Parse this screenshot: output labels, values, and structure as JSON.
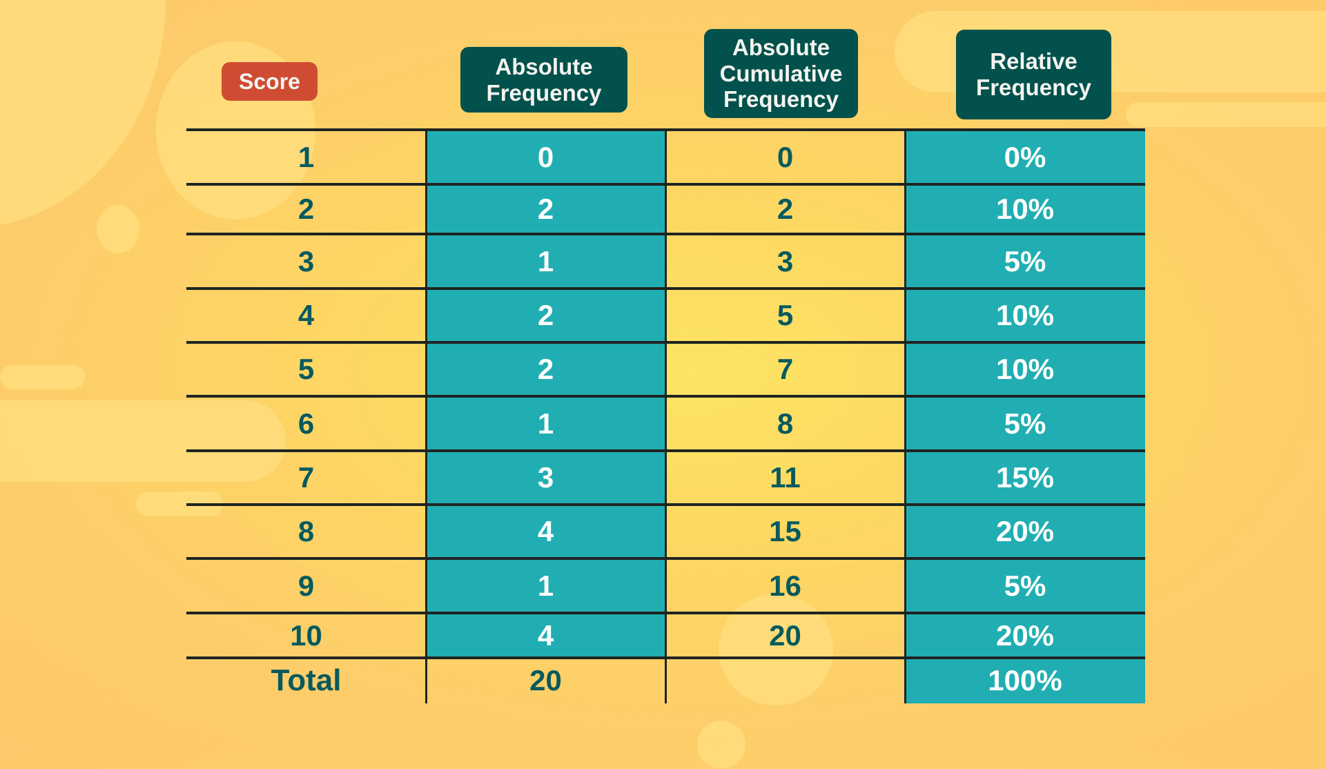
{
  "headers": {
    "score": "Score",
    "absolute_frequency": "Absolute\nFrequency",
    "absolute_cumulative_frequency": "Absolute\nCumulative\nFrequency",
    "relative_frequency": "Relative\nFrequency"
  },
  "rows": [
    {
      "score": "1",
      "abs": "0",
      "cum": "0",
      "rel": "0%"
    },
    {
      "score": "2",
      "abs": "2",
      "cum": "2",
      "rel": "10%"
    },
    {
      "score": "3",
      "abs": "1",
      "cum": "3",
      "rel": "5%"
    },
    {
      "score": "4",
      "abs": "2",
      "cum": "5",
      "rel": "10%"
    },
    {
      "score": "5",
      "abs": "2",
      "cum": "7",
      "rel": "10%"
    },
    {
      "score": "6",
      "abs": "1",
      "cum": "8",
      "rel": "5%"
    },
    {
      "score": "7",
      "abs": "3",
      "cum": "11",
      "rel": "15%"
    },
    {
      "score": "8",
      "abs": "4",
      "cum": "15",
      "rel": "20%"
    },
    {
      "score": "9",
      "abs": "1",
      "cum": "16",
      "rel": "5%"
    },
    {
      "score": "10",
      "abs": "4",
      "cum": "20",
      "rel": "20%"
    }
  ],
  "total": {
    "label": "Total",
    "abs": "20",
    "cum": "",
    "rel": "100%"
  },
  "colors": {
    "score_badge": "#cf4c32",
    "header_badge": "#02514c",
    "teal_column": "#21aeb2",
    "text_dark": "#075a5e",
    "background": "#fdd862"
  },
  "chart_data": {
    "type": "table",
    "title": "",
    "columns": [
      "Score",
      "Absolute Frequency",
      "Absolute Cumulative Frequency",
      "Relative Frequency"
    ],
    "categories": [
      "1",
      "2",
      "3",
      "4",
      "5",
      "6",
      "7",
      "8",
      "9",
      "10"
    ],
    "series": [
      {
        "name": "Absolute Frequency",
        "values": [
          0,
          2,
          1,
          2,
          2,
          1,
          3,
          4,
          1,
          4
        ]
      },
      {
        "name": "Absolute Cumulative Frequency",
        "values": [
          0,
          2,
          3,
          5,
          7,
          8,
          11,
          15,
          16,
          20
        ]
      },
      {
        "name": "Relative Frequency (%)",
        "values": [
          0,
          10,
          5,
          10,
          10,
          5,
          15,
          20,
          5,
          20
        ]
      }
    ],
    "totals": {
      "Absolute Frequency": 20,
      "Relative Frequency (%)": 100
    }
  }
}
